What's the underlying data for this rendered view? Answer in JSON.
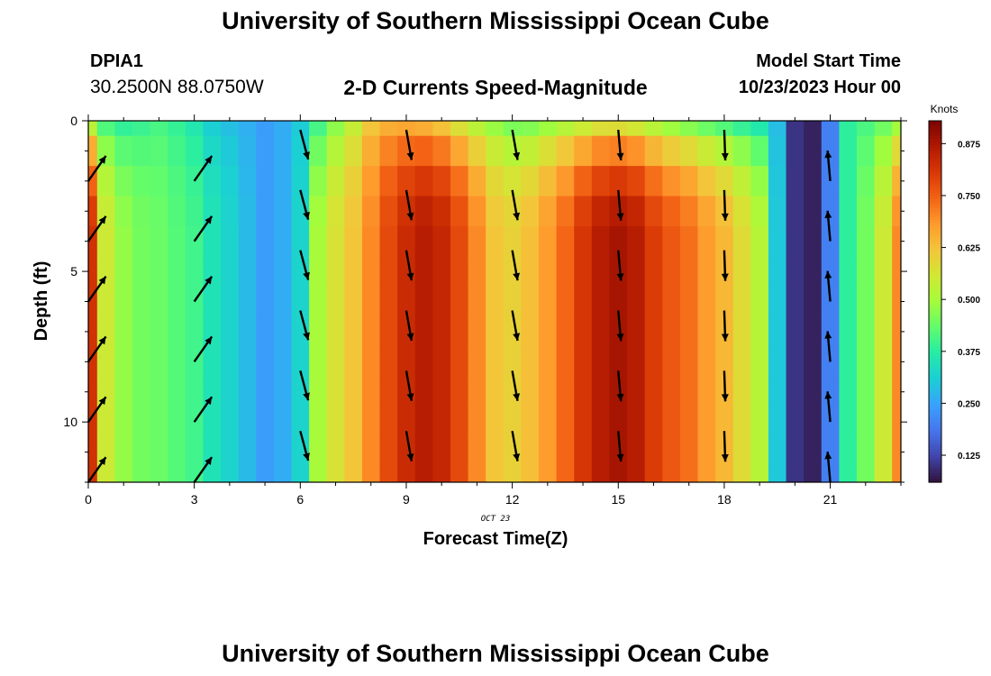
{
  "header": {
    "title": "University of Southern Mississippi Ocean Cube",
    "station_id": "DPIA1",
    "station_coords": "30.2500N  88.0750W",
    "subtitle": "2-D Currents Speed-Magnitude",
    "model_label": "Model Start Time",
    "model_time": "10/23/2023 Hour 00"
  },
  "footer": {
    "title": "University of Southern Mississippi Ocean Cube"
  },
  "chart_data": {
    "type": "heatmap",
    "title": "2-D Currents Speed-Magnitude",
    "xlabel": "Forecast Time(Z)",
    "ylabel": "Depth (ft)",
    "x_date_label": "OCT 23",
    "xlim": [
      0,
      23
    ],
    "ylim": [
      0,
      12
    ],
    "y_inverted": true,
    "x_ticks": [
      0,
      3,
      6,
      9,
      12,
      15,
      18,
      21
    ],
    "y_ticks": [
      0,
      5,
      10
    ],
    "colorbar": {
      "unit": "Knots",
      "range": [
        0.06,
        0.93
      ],
      "ticks": [
        "0.125",
        "0.250",
        "0.375",
        "0.500",
        "0.625",
        "0.750",
        "0.875"
      ],
      "colors": [
        "#30123b",
        "#4145ab",
        "#4675ed",
        "#39a2fc",
        "#1bcfd4",
        "#24eca6",
        "#61fc6c",
        "#a4fc3b",
        "#d1e834",
        "#f3c63a",
        "#fe9b2d",
        "#f36315",
        "#d93806",
        "#b11901",
        "#7a0402"
      ]
    },
    "x_hours": [
      0,
      0.5,
      1,
      1.5,
      2,
      2.5,
      3,
      3.5,
      4,
      4.5,
      5,
      5.5,
      6,
      6.5,
      7,
      7.5,
      8,
      8.5,
      9,
      9.5,
      10,
      10.5,
      11,
      11.5,
      12,
      12.5,
      13,
      13.5,
      14,
      14.5,
      15,
      15.5,
      16,
      16.5,
      17,
      17.5,
      18,
      18.5,
      19,
      19.5,
      20,
      20.5,
      21,
      21.5,
      22,
      22.5,
      23
    ],
    "depth_levels": [
      0,
      1,
      2,
      3,
      4,
      5,
      6,
      7,
      8,
      9,
      10,
      11,
      12
    ],
    "speed_profile": [
      0.82,
      0.55,
      0.48,
      0.45,
      0.44,
      0.42,
      0.4,
      0.35,
      0.32,
      0.28,
      0.24,
      0.26,
      0.32,
      0.5,
      0.57,
      0.62,
      0.7,
      0.78,
      0.83,
      0.86,
      0.84,
      0.78,
      0.7,
      0.62,
      0.6,
      0.63,
      0.68,
      0.74,
      0.81,
      0.86,
      0.88,
      0.86,
      0.8,
      0.76,
      0.73,
      0.68,
      0.64,
      0.58,
      0.52,
      0.3,
      0.1,
      0.08,
      0.2,
      0.38,
      0.45,
      0.55,
      0.7
    ],
    "surface_speed": [
      0.45,
      0.38,
      0.36,
      0.38,
      0.4,
      0.38,
      0.35,
      0.3,
      0.28,
      0.26,
      0.24,
      0.26,
      0.3,
      0.38,
      0.45,
      0.52,
      0.6,
      0.62,
      0.62,
      0.6,
      0.57,
      0.52,
      0.48,
      0.45,
      0.42,
      0.42,
      0.44,
      0.46,
      0.48,
      0.5,
      0.5,
      0.48,
      0.45,
      0.42,
      0.4,
      0.38,
      0.36,
      0.34,
      0.32,
      0.28,
      0.1,
      0.08,
      0.2,
      0.38,
      0.4,
      0.42,
      0.44
    ],
    "vectors": {
      "x_positions": [
        0,
        3,
        6,
        9,
        12,
        15,
        18,
        21
      ],
      "depths": [
        2,
        4,
        6,
        8,
        10,
        12
      ],
      "surface_depth": 0.3,
      "direction_deg": [
        35,
        35,
        165,
        170,
        170,
        175,
        178,
        355
      ]
    }
  }
}
